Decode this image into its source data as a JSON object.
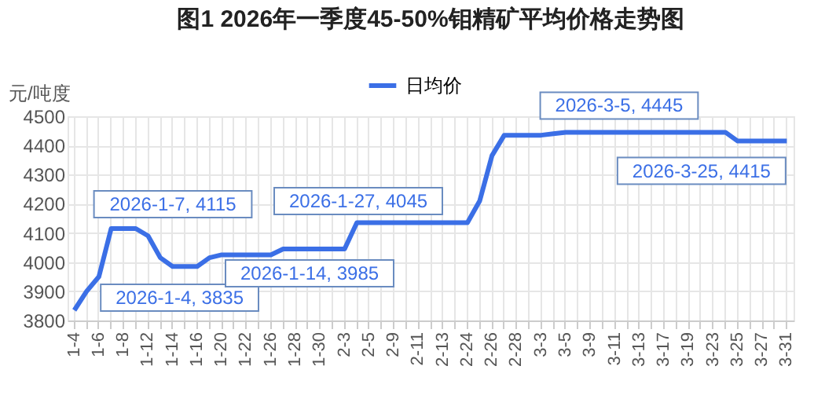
{
  "chart_data": {
    "type": "line",
    "title": "图1  2026年一季度45-50%钼精矿平均价格走势图",
    "ylabel": "元/吨度",
    "categories": [
      "1-4",
      null,
      "1-6",
      null,
      "1-8",
      null,
      "1-12",
      null,
      "1-14",
      null,
      "1-16",
      null,
      "1-20",
      null,
      "1-22",
      null,
      "1-26",
      null,
      "1-28",
      null,
      "1-30",
      null,
      "2-3",
      null,
      "2-5",
      null,
      "2-9",
      null,
      "2-11",
      null,
      "2-13",
      null,
      "2-24",
      null,
      "2-26",
      null,
      "2-28",
      null,
      "3-3",
      null,
      "3-5",
      null,
      "3-9",
      null,
      "3-11",
      null,
      "3-13",
      null,
      "3-17",
      null,
      "3-19",
      null,
      "3-23",
      null,
      "3-25",
      null,
      "3-27",
      null,
      "3-31"
    ],
    "series": [
      {
        "name": "日均价",
        "color": "#3b6fe6",
        "values": [
          3835,
          3900,
          3950,
          4115,
          4115,
          4115,
          4090,
          4015,
          3985,
          3985,
          3985,
          4015,
          4025,
          4025,
          4025,
          4025,
          4025,
          4045,
          4045,
          4045,
          4045,
          4045,
          4045,
          4135,
          4135,
          4135,
          4135,
          4135,
          4135,
          4135,
          4135,
          4135,
          4135,
          4210,
          4365,
          4435,
          4435,
          4435,
          4435,
          4440,
          4445,
          4445,
          4445,
          4445,
          4445,
          4445,
          4445,
          4445,
          4445,
          4445,
          4445,
          4445,
          4445,
          4445,
          4415,
          4415,
          4415,
          4415,
          4415
        ]
      }
    ],
    "ylim": [
      3800,
      4500
    ],
    "yticks": [
      3800,
      3900,
      4000,
      4100,
      4200,
      4300,
      4400,
      4500
    ],
    "grid": true,
    "legend": "top",
    "marker": "none",
    "line_style": "solid",
    "annotations": [
      {
        "text": "2026-1-4, 3835",
        "x": "1-4",
        "y": 3835
      },
      "2026-1-7, 4115",
      "2026-1-14, 3985",
      "2026-1-27, 4045",
      {
        "text": "2026-3-5, 4445",
        "x": "3-5",
        "y": 4445
      },
      {
        "text": "2026-3-25, 4415",
        "x": "3-25",
        "y": 4415
      }
    ]
  }
}
